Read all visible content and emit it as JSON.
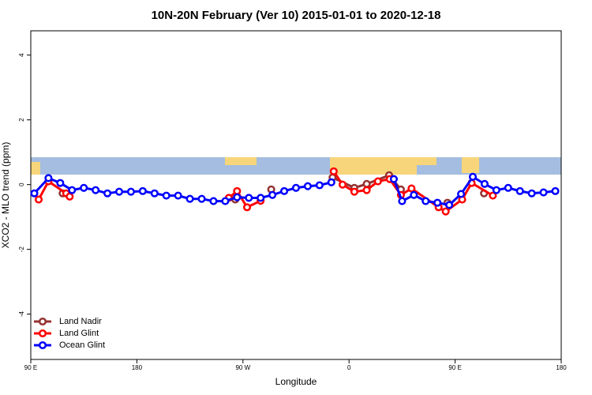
{
  "chart_data": {
    "type": "line",
    "title": "10N-20N February (Ver 10)   2015-01-01 to 2020-12-18",
    "xlabel": "Longitude",
    "ylabel": "XCO2 - MLO trend (ppm)",
    "xlim": [
      90,
      540
    ],
    "ylim": [
      -5.4,
      4.75
    ],
    "xticks": [
      {
        "value": 90,
        "label": "90 E"
      },
      180,
      {
        "value": 270,
        "label": "90 W"
      },
      {
        "value": 360,
        "label": "0"
      },
      {
        "value": 450,
        "label": "90 E"
      },
      {
        "value": 540,
        "label": "180"
      }
    ],
    "yticks": [
      -4,
      -2,
      0,
      2,
      4
    ],
    "legend": "bottom-left",
    "series": [
      {
        "name": "Land Nadir",
        "color": "#943232",
        "x": [
          117,
          263.5,
          294,
          346,
          364.5,
          375,
          394,
          404,
          443.5,
          474.5
        ],
        "values": [
          -0.27,
          -0.46,
          -0.15,
          0.22,
          -0.1,
          0.02,
          0.29,
          -0.15,
          -0.56,
          -0.27
        ]
      },
      {
        "name": "Land Glint",
        "color": "#ff0000",
        "x": [
          96.7,
          105,
          120,
          123,
          258,
          265,
          273.5,
          285,
          347,
          354.5,
          364.5,
          375,
          384.5,
          394.5,
          404,
          413,
          436,
          442,
          456,
          464,
          482
        ],
        "values": [
          -0.46,
          0.1,
          -0.27,
          -0.37,
          -0.41,
          -0.2,
          -0.7,
          -0.5,
          0.41,
          0,
          -0.22,
          -0.17,
          0.1,
          0.17,
          -0.32,
          -0.12,
          -0.7,
          -0.83,
          -0.46,
          0.05,
          -0.34
        ]
      },
      {
        "name": "Ocean Glint",
        "color": "#0000ff",
        "x": [
          93,
          105,
          115,
          125,
          135,
          145,
          155,
          165,
          175,
          185,
          195,
          205,
          215,
          225,
          235,
          245,
          255,
          265,
          275,
          285,
          295,
          305,
          315,
          325,
          335,
          345,
          398,
          405,
          415,
          425,
          435,
          445,
          455,
          465,
          475,
          485,
          495,
          505,
          515,
          525,
          535
        ],
        "values": [
          -0.27,
          0.2,
          0.05,
          -0.17,
          -0.1,
          -0.17,
          -0.27,
          -0.22,
          -0.22,
          -0.2,
          -0.27,
          -0.34,
          -0.34,
          -0.44,
          -0.44,
          -0.51,
          -0.51,
          -0.39,
          -0.41,
          -0.41,
          -0.32,
          -0.2,
          -0.1,
          -0.05,
          -0.02,
          0.07,
          0.17,
          -0.51,
          -0.32,
          -0.51,
          -0.56,
          -0.63,
          -0.29,
          0.24,
          0.02,
          -0.17,
          -0.1,
          -0.2,
          -0.27,
          -0.24,
          -0.2
        ]
      }
    ]
  }
}
